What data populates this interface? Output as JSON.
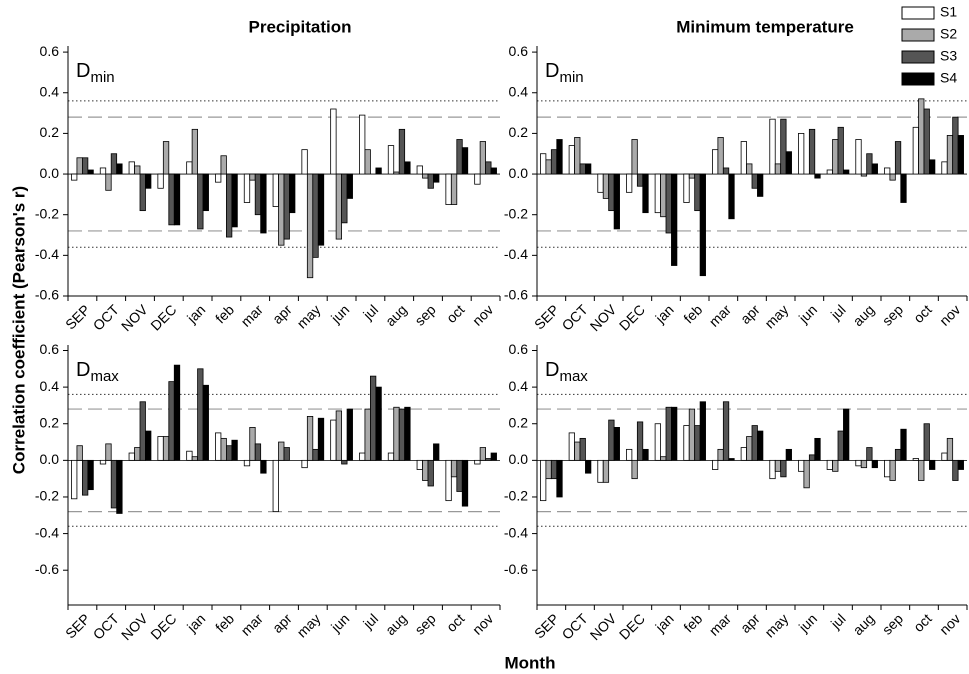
{
  "figure": {
    "column_titles": [
      "Precipitation",
      "Minimum temperature"
    ],
    "ylabel": "Correlation coefficient (Pearson's r)",
    "xlabel": "Month"
  },
  "chart_data": [
    {
      "type": "bar",
      "label": "D",
      "label_sub": "min",
      "categories": [
        "SEP",
        "OCT",
        "NOV",
        "DEC",
        "jan",
        "feb",
        "mar",
        "apr",
        "may",
        "jun",
        "jul",
        "aug",
        "sep",
        "oct",
        "nov"
      ],
      "ylim": [
        -0.6,
        0.63
      ],
      "yticks": [
        -0.6,
        -0.4,
        -0.2,
        {
          "value": 0,
          "label": "0.0"
        },
        0.2,
        0.4,
        0.6
      ],
      "dashed_lines": [
        -0.28,
        0.28
      ],
      "dotted_lines": [
        -0.36,
        0.36
      ],
      "series": [
        {
          "name": "S1",
          "color": "#ffffff",
          "values": [
            -0.03,
            0.03,
            0.06,
            -0.07,
            0.06,
            -0.04,
            -0.14,
            -0.16,
            0.12,
            0.32,
            0.29,
            0.14,
            0.04,
            -0.15,
            -0.05
          ]
        },
        {
          "name": "S2",
          "color": "#aaaaaa",
          "values": [
            0.08,
            -0.08,
            0.04,
            0.16,
            0.22,
            0.09,
            -0.03,
            -0.35,
            -0.51,
            -0.32,
            0.12,
            0.01,
            -0.02,
            -0.15,
            0.16
          ]
        },
        {
          "name": "S3",
          "color": "#555555",
          "values": [
            0.08,
            0.1,
            -0.18,
            -0.25,
            -0.27,
            -0.31,
            -0.2,
            -0.32,
            -0.41,
            -0.24,
            0.0,
            0.22,
            -0.07,
            0.17,
            0.06
          ]
        },
        {
          "name": "S4",
          "color": "#000000",
          "values": [
            0.02,
            0.05,
            -0.07,
            -0.25,
            -0.18,
            -0.26,
            -0.29,
            -0.19,
            -0.35,
            -0.12,
            0.03,
            0.06,
            -0.04,
            0.13,
            0.03
          ]
        }
      ]
    },
    {
      "type": "bar",
      "label": "D",
      "label_sub": "min",
      "categories": [
        "SEP",
        "OCT",
        "NOV",
        "DEC",
        "jan",
        "feb",
        "mar",
        "apr",
        "may",
        "jun",
        "jul",
        "aug",
        "sep",
        "oct",
        "nov"
      ],
      "ylim": [
        -0.6,
        0.63
      ],
      "yticks": [
        -0.6,
        -0.4,
        -0.2,
        {
          "value": 0,
          "label": "0.0"
        },
        0.2,
        0.4,
        0.6
      ],
      "dashed_lines": [
        -0.28,
        0.28
      ],
      "dotted_lines": [
        -0.36,
        0.36
      ],
      "series": [
        {
          "name": "S1",
          "color": "#ffffff",
          "values": [
            0.1,
            0.14,
            -0.09,
            -0.09,
            -0.19,
            -0.14,
            0.12,
            0.16,
            0.27,
            0.2,
            0.02,
            0.17,
            0.03,
            0.23,
            0.06
          ]
        },
        {
          "name": "S2",
          "color": "#aaaaaa",
          "values": [
            0.07,
            0.18,
            -0.12,
            0.17,
            -0.21,
            -0.02,
            0.18,
            0.05,
            0.05,
            0.0,
            0.17,
            -0.01,
            -0.03,
            0.37,
            0.19
          ]
        },
        {
          "name": "S3",
          "color": "#555555",
          "values": [
            0.12,
            0.05,
            -0.18,
            -0.06,
            -0.29,
            -0.18,
            0.03,
            -0.07,
            0.27,
            0.22,
            0.23,
            0.1,
            0.16,
            0.32,
            0.28
          ]
        },
        {
          "name": "S4",
          "color": "#000000",
          "values": [
            0.17,
            0.05,
            -0.27,
            -0.19,
            -0.45,
            -0.5,
            -0.22,
            -0.11,
            0.11,
            -0.02,
            0.02,
            0.05,
            -0.14,
            0.07,
            0.19
          ]
        }
      ]
    },
    {
      "type": "bar",
      "label": "D",
      "label_sub": "max",
      "categories": [
        "SEP",
        "OCT",
        "NOV",
        "DEC",
        "jan",
        "feb",
        "mar",
        "apr",
        "may",
        "jun",
        "jul",
        "aug",
        "sep",
        "oct",
        "nov"
      ],
      "ylim": [
        -0.79,
        0.63
      ],
      "yticks": [
        -0.6,
        -0.4,
        -0.2,
        {
          "value": 0,
          "label": "0.0"
        },
        0.2,
        0.4,
        0.6
      ],
      "dashed_lines": [
        -0.28,
        0.28
      ],
      "dotted_lines": [
        -0.36,
        0.36
      ],
      "series": [
        {
          "name": "S1",
          "color": "#ffffff",
          "values": [
            -0.21,
            -0.02,
            0.04,
            0.13,
            0.05,
            0.15,
            -0.03,
            -0.28,
            -0.04,
            0.22,
            0.04,
            0.04,
            -0.05,
            -0.22,
            -0.02
          ]
        },
        {
          "name": "S2",
          "color": "#aaaaaa",
          "values": [
            0.08,
            0.09,
            0.07,
            0.13,
            0.02,
            0.12,
            0.18,
            0.1,
            0.24,
            0.27,
            0.28,
            0.29,
            -0.11,
            -0.09,
            0.07
          ]
        },
        {
          "name": "S3",
          "color": "#555555",
          "values": [
            -0.19,
            -0.26,
            0.32,
            0.43,
            0.5,
            0.08,
            0.09,
            0.07,
            0.06,
            -0.02,
            0.46,
            0.28,
            -0.14,
            -0.17,
            0.01
          ]
        },
        {
          "name": "S4",
          "color": "#000000",
          "values": [
            -0.16,
            -0.29,
            0.16,
            0.52,
            0.41,
            0.11,
            -0.07,
            0.0,
            0.23,
            0.28,
            0.4,
            0.29,
            0.09,
            -0.25,
            0.04
          ]
        }
      ]
    },
    {
      "type": "bar",
      "label": "D",
      "label_sub": "max",
      "categories": [
        "SEP",
        "OCT",
        "NOV",
        "DEC",
        "jan",
        "feb",
        "mar",
        "apr",
        "may",
        "jun",
        "jul",
        "aug",
        "sep",
        "oct",
        "nov"
      ],
      "ylim": [
        -0.79,
        0.63
      ],
      "yticks": [
        -0.6,
        -0.4,
        -0.2,
        {
          "value": 0,
          "label": "0.0"
        },
        0.2,
        0.4,
        0.6
      ],
      "dashed_lines": [
        -0.28,
        0.28
      ],
      "dotted_lines": [
        -0.36,
        0.36
      ],
      "series": [
        {
          "name": "S1",
          "color": "#ffffff",
          "values": [
            -0.22,
            0.15,
            -0.12,
            0.06,
            0.2,
            0.19,
            -0.05,
            0.07,
            -0.1,
            -0.06,
            -0.05,
            -0.03,
            -0.09,
            0.01,
            0.04
          ]
        },
        {
          "name": "S2",
          "color": "#aaaaaa",
          "values": [
            -0.1,
            0.1,
            -0.12,
            -0.1,
            0.02,
            0.28,
            0.06,
            0.13,
            -0.06,
            -0.15,
            -0.06,
            -0.04,
            -0.11,
            -0.11,
            0.12
          ]
        },
        {
          "name": "S3",
          "color": "#555555",
          "values": [
            -0.1,
            0.12,
            0.22,
            0.21,
            0.29,
            0.19,
            0.32,
            0.19,
            -0.09,
            0.03,
            0.16,
            0.07,
            0.06,
            0.2,
            -0.11
          ]
        },
        {
          "name": "S4",
          "color": "#000000",
          "values": [
            -0.2,
            -0.07,
            0.18,
            0.06,
            0.29,
            0.32,
            0.01,
            0.16,
            0.06,
            0.12,
            0.28,
            -0.04,
            0.17,
            -0.05,
            -0.05
          ]
        }
      ]
    }
  ]
}
